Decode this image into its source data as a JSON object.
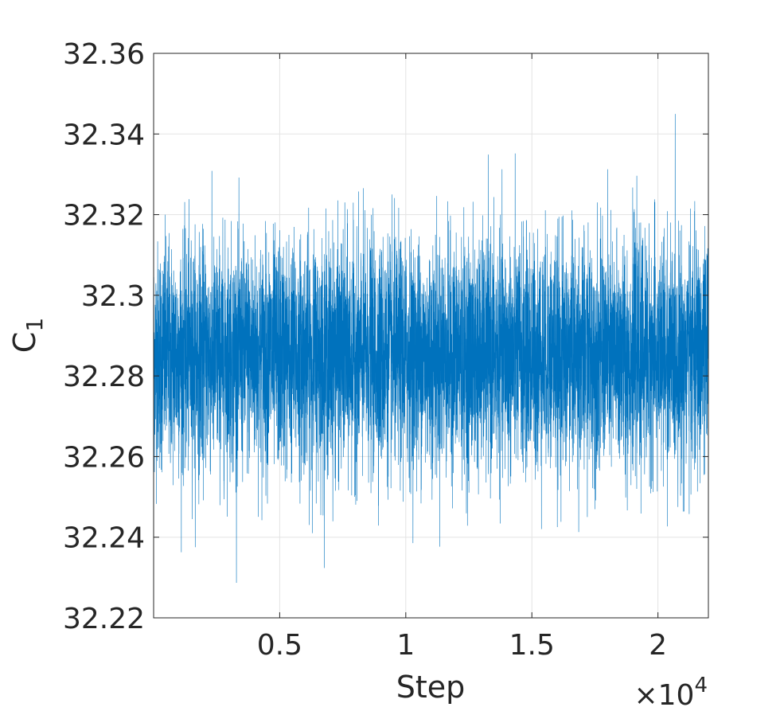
{
  "chart_data": {
    "type": "line",
    "title": "",
    "xlabel": "Step",
    "ylabel_main": "C",
    "ylabel_sub": "1",
    "x_exponent_label": {
      "base": "×10",
      "exp": "4"
    },
    "xlim": [
      0,
      22000
    ],
    "ylim": [
      32.22,
      32.36
    ],
    "xticks": [
      5000,
      10000,
      15000,
      20000
    ],
    "xtick_labels": [
      "0.5",
      "1",
      "1.5",
      "2"
    ],
    "yticks": [
      32.22,
      32.24,
      32.26,
      32.28,
      32.3,
      32.32,
      32.34,
      32.36
    ],
    "ytick_labels": [
      "32.22",
      "32.24",
      "32.26",
      "32.28",
      "32.3",
      "32.32",
      "32.34",
      "32.36"
    ],
    "grid": true,
    "series": [
      {
        "color": "#0072BD",
        "n_points": 22000,
        "mean": 32.285,
        "std": 0.014,
        "min": 32.222,
        "max": 32.347
      }
    ]
  }
}
